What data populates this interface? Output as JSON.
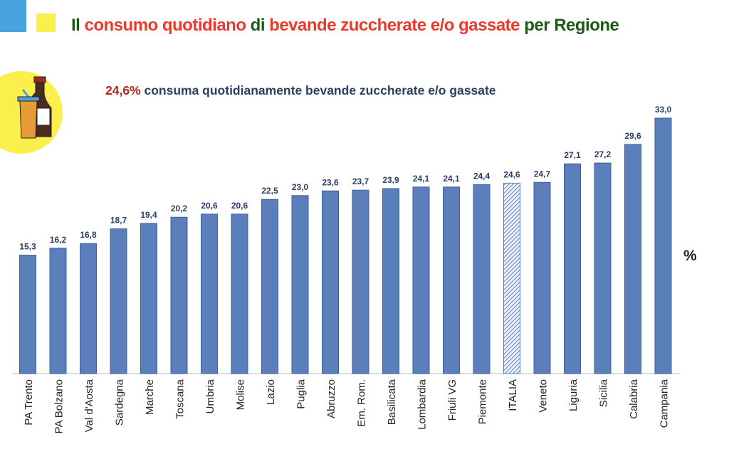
{
  "title": {
    "part1": "Il",
    "part2": "consumo quotidiano",
    "part3": "di",
    "part4": "bevande zuccherate e/o gassate",
    "part5": "per Regione"
  },
  "subtitle": {
    "highlight": "24,6%",
    "text": " consuma quotidianamente bevande zuccherate e/o gassate"
  },
  "unit_label": "%",
  "colors": {
    "bar": "#5a7fba",
    "highlight_bar": "#9db5df",
    "title_green": "#1e5a16",
    "title_red": "#ea3a2c"
  },
  "chart_data": {
    "type": "bar",
    "title": "Il consumo quotidiano di bevande zuccherate e/o gassate per Regione",
    "ylabel": "%",
    "ylim": [
      0,
      33
    ],
    "grid": false,
    "categories": [
      "PA Trento",
      "PA Bolzano",
      "Val d'Aosta",
      "Sardegna",
      "Marche",
      "Toscana",
      "Umbria",
      "Molise",
      "Lazio",
      "Puglia",
      "Abruzzo",
      "Em. Rom.",
      "Basilicata",
      "Lombardia",
      "Friuli VG",
      "Piemonte",
      "ITALIA",
      "Veneto",
      "Liguria",
      "Sicilia",
      "Calabria",
      "Campania"
    ],
    "values": [
      15.3,
      16.2,
      16.8,
      18.7,
      19.4,
      20.2,
      20.6,
      20.6,
      22.5,
      23.0,
      23.6,
      23.7,
      23.9,
      24.1,
      24.1,
      24.4,
      24.6,
      24.7,
      27.1,
      27.2,
      29.6,
      33.0
    ],
    "value_labels": [
      "15,3",
      "16,2",
      "16,8",
      "18,7",
      "19,4",
      "20,2",
      "20,6",
      "20,6",
      "22,5",
      "23,0",
      "23,6",
      "23,7",
      "23,9",
      "24,1",
      "24,1",
      "24,4",
      "24,6",
      "24,7",
      "27,1",
      "27,2",
      "29,6",
      "33,0"
    ],
    "highlight": "ITALIA"
  }
}
